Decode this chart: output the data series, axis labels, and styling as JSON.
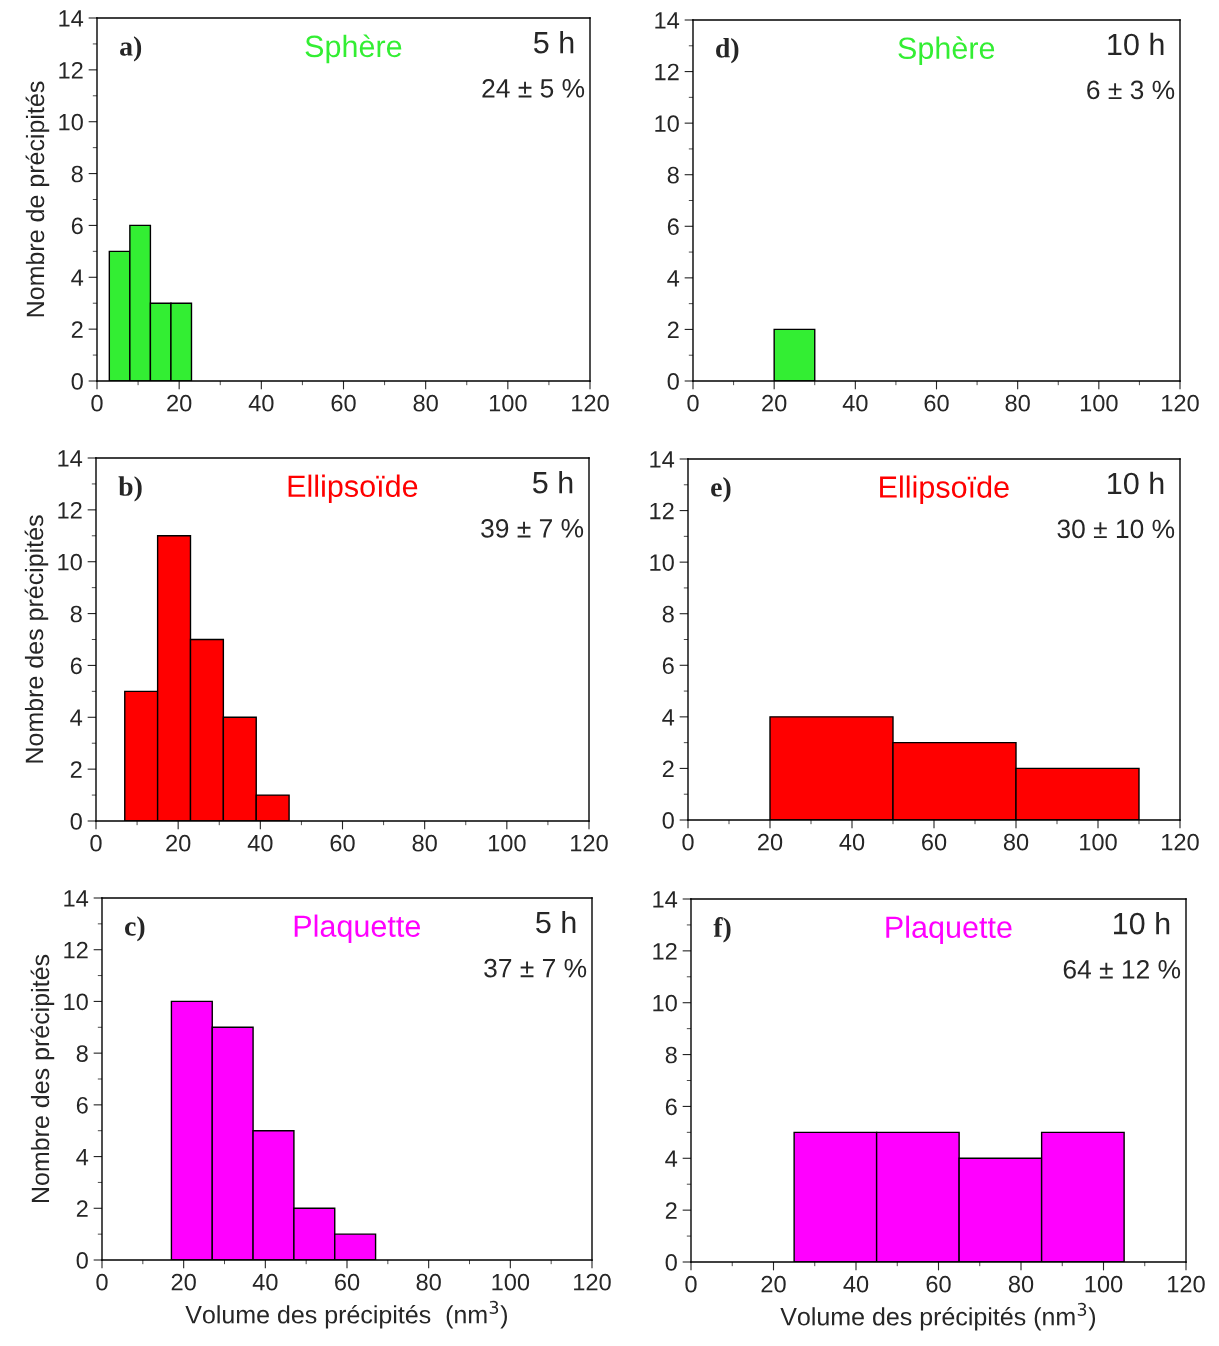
{
  "chart_data": [
    {
      "type": "histogram",
      "title": "Sphère",
      "ylabel": "Nombre de précipités",
      "bins": [
        3,
        8,
        13,
        18,
        23
      ],
      "series": [
        {
          "color": "#33ee33",
          "values": [
            5,
            6,
            3,
            3
          ]
        }
      ],
      "xlim": [
        0,
        120
      ],
      "xticks": [
        0,
        20,
        40,
        60,
        80,
        100,
        120
      ],
      "ylim": [
        0,
        14
      ],
      "yticks": [
        0,
        2,
        4,
        6,
        8,
        10,
        12,
        14
      ],
      "grid": false,
      "annotations": [
        "a)",
        "5 h",
        "24 ± 5 %"
      ]
    },
    {
      "type": "histogram",
      "title": "Sphère",
      "bins": [
        20,
        30
      ],
      "series": [
        {
          "color": "#33ee33",
          "values": [
            2
          ]
        }
      ],
      "xlim": [
        0,
        120
      ],
      "xticks": [
        0,
        20,
        40,
        60,
        80,
        100,
        120
      ],
      "ylim": [
        0,
        14
      ],
      "yticks": [
        0,
        2,
        4,
        6,
        8,
        10,
        12,
        14
      ],
      "grid": false,
      "annotations": [
        "d)",
        "10 h",
        "6 ± 3 %"
      ]
    },
    {
      "type": "histogram",
      "title": "Ellipsoïde",
      "ylabel": "Nombre des précipités",
      "bins": [
        7,
        15,
        23,
        31,
        39,
        47
      ],
      "series": [
        {
          "color": "#ff0000",
          "values": [
            5,
            11,
            7,
            4,
            1
          ]
        }
      ],
      "xlim": [
        0,
        120
      ],
      "xticks": [
        0,
        20,
        40,
        60,
        80,
        100,
        120
      ],
      "ylim": [
        0,
        14
      ],
      "yticks": [
        0,
        2,
        4,
        6,
        8,
        10,
        12,
        14
      ],
      "grid": false,
      "annotations": [
        "b)",
        "5 h",
        "39 ± 7 %"
      ]
    },
    {
      "type": "histogram",
      "title": "Ellipsoïde",
      "bins": [
        20,
        50,
        80,
        110
      ],
      "series": [
        {
          "color": "#ff0000",
          "values": [
            4,
            3,
            2
          ]
        }
      ],
      "xlim": [
        0,
        120
      ],
      "xticks": [
        0,
        20,
        40,
        60,
        80,
        100,
        120
      ],
      "ylim": [
        0,
        14
      ],
      "yticks": [
        0,
        2,
        4,
        6,
        8,
        10,
        12,
        14
      ],
      "grid": false,
      "annotations": [
        "e)",
        "10 h",
        "30 ± 10 %"
      ]
    },
    {
      "type": "histogram",
      "title": "Plaquette",
      "ylabel": "Nombre des précipités",
      "xlabel": "Volume des précipités  (nm$^{3}$)",
      "bins": [
        17,
        27,
        37,
        47,
        57,
        67
      ],
      "series": [
        {
          "color": "#ff00ff",
          "values": [
            10,
            9,
            5,
            2,
            1
          ]
        }
      ],
      "xlim": [
        0,
        120
      ],
      "xticks": [
        0,
        20,
        40,
        60,
        80,
        100,
        120
      ],
      "ylim": [
        0,
        14
      ],
      "yticks": [
        0,
        2,
        4,
        6,
        8,
        10,
        12,
        14
      ],
      "grid": false,
      "annotations": [
        "c)",
        "5 h",
        "37 ± 7 %"
      ]
    },
    {
      "type": "histogram",
      "title": "Plaquette",
      "xlabel": "Volume des précipités (nm$^{3}$)",
      "bins": [
        25,
        45,
        65,
        85,
        105
      ],
      "series": [
        {
          "color": "#ff00ff",
          "values": [
            5,
            5,
            4,
            5
          ]
        }
      ],
      "xlim": [
        0,
        120
      ],
      "xticks": [
        0,
        20,
        40,
        60,
        80,
        100,
        120
      ],
      "ylim": [
        0,
        14
      ],
      "yticks": [
        0,
        2,
        4,
        6,
        8,
        10,
        12,
        14
      ],
      "grid": false,
      "annotations": [
        "f)",
        "10 h",
        "64 ± 12 %"
      ]
    }
  ]
}
